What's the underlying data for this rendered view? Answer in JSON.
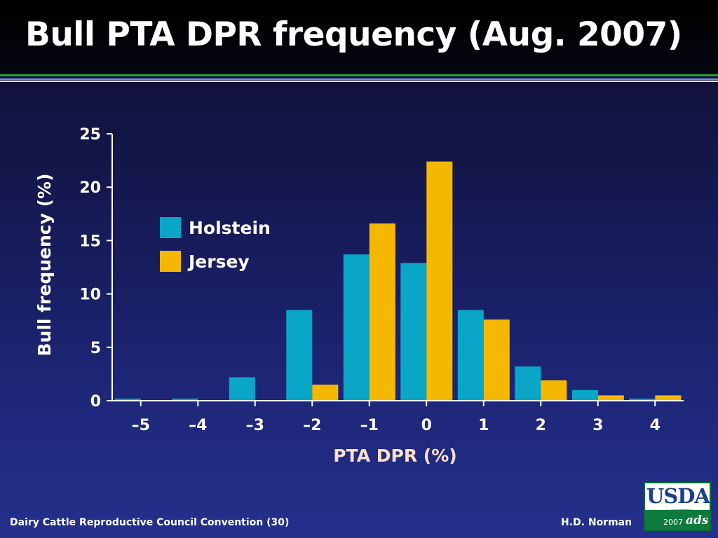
{
  "slide": {
    "title": "Bull PTA DPR frequency (Aug. 2007)",
    "footer_left": "Dairy Cattle Reproductive Council Convention (30)",
    "footer_right": "H.D. Norman",
    "logo": {
      "word": "USDA",
      "year": "2007",
      "mark": "ads"
    }
  },
  "chart_data": {
    "type": "bar",
    "title": "",
    "xlabel": "PTA DPR (%)",
    "ylabel": "Bull frequency (%)",
    "categories": [
      "–5",
      "–4",
      "–3",
      "–2",
      "–1",
      "0",
      "1",
      "2",
      "3",
      "4"
    ],
    "ylim": [
      0,
      25
    ],
    "yticks": [
      "0",
      "5",
      "10",
      "15",
      "20",
      "25"
    ],
    "grid": false,
    "legend_position": "upper-left",
    "series": [
      {
        "name": "Holstein",
        "color": "#0aa6c8",
        "values": [
          0.2,
          0.2,
          2.2,
          8.5,
          13.7,
          12.9,
          8.5,
          3.2,
          1.0,
          0.2
        ]
      },
      {
        "name": "Jersey",
        "color": "#f5b800",
        "values": [
          0,
          0,
          0,
          1.5,
          16.6,
          22.4,
          7.6,
          1.9,
          0.5,
          0.5
        ]
      }
    ],
    "axis_color": "#ffffff",
    "label_color": "#ffffff",
    "xlabel_color": "#ffe0c8"
  }
}
